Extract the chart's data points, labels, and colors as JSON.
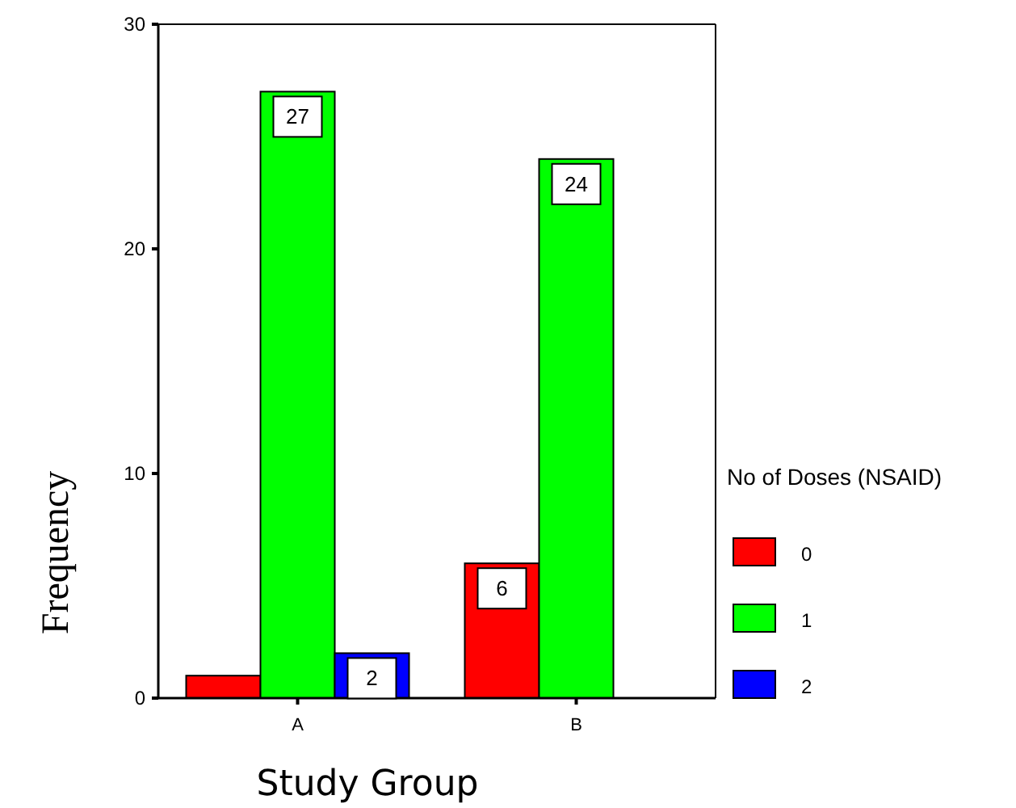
{
  "chart_data": {
    "type": "bar",
    "xlabel": "Study Group",
    "ylabel": "Frequency",
    "legend_title": "No of Doses (NSAID)",
    "categories": [
      "A",
      "B"
    ],
    "series": [
      {
        "name": "0",
        "color": "#ff0000",
        "values": [
          1,
          6
        ],
        "value_labels": [
          null,
          "6"
        ]
      },
      {
        "name": "1",
        "color": "#00ff00",
        "values": [
          27,
          24
        ],
        "value_labels": [
          "27",
          "24"
        ]
      },
      {
        "name": "2",
        "color": "#0000ff",
        "values": [
          2,
          null
        ],
        "value_labels": [
          "2",
          null
        ]
      }
    ],
    "ylim": [
      0,
      30
    ],
    "yticks": [
      0,
      10,
      20,
      30
    ],
    "grid": false,
    "legend": "right"
  }
}
